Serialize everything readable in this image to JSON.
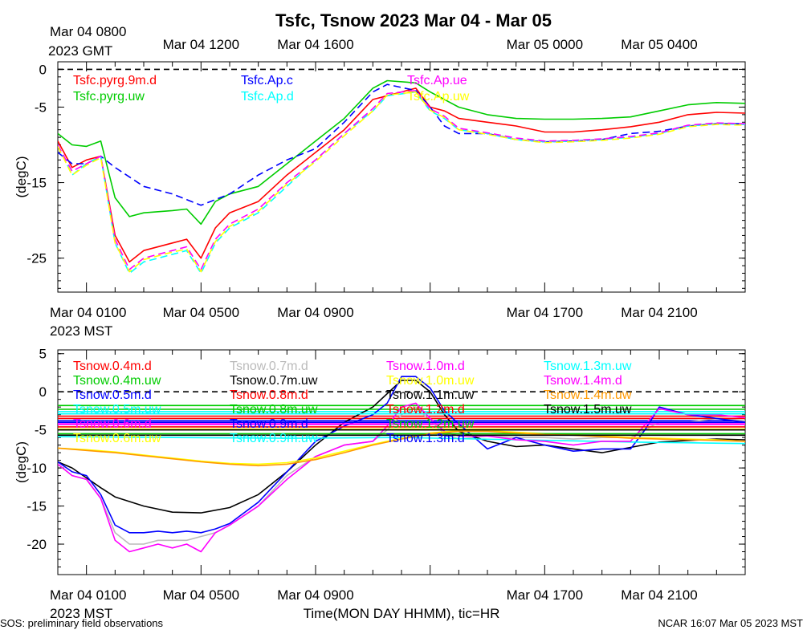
{
  "title": "Tsfc, Tsnow 2023 Mar 04 - Mar 05",
  "footer_left": "SOS: preliminary field observations",
  "footer_right": "NCAR 16:07 Mar 05 2023 MST",
  "chart_data": [
    {
      "type": "line",
      "name": "Tsfc",
      "ylabel": "(degC)",
      "ylim": [
        -29.5,
        1
      ],
      "yticks": [
        0,
        -5,
        -15,
        -25
      ],
      "reference_line": 0,
      "x_unit": "hours after Mar 04 0000 MST",
      "xlim": [
        0,
        24
      ],
      "top_axis_header": [
        "Mar 04 0800",
        "2023 GMT"
      ],
      "top_tick_labels": [
        {
          "x": 5,
          "label": "Mar 04 1200"
        },
        {
          "x": 9,
          "label": "Mar 04 1600"
        },
        {
          "x": 17,
          "label": "Mar 05 0000"
        },
        {
          "x": 21,
          "label": "Mar 05 0400"
        }
      ],
      "bottom_axis_header": [
        "Mar 04 0100",
        "2023 MST"
      ],
      "bottom_tick_labels": [
        {
          "x": 5,
          "label": "Mar 04 0500"
        },
        {
          "x": 9,
          "label": "Mar 04 0900"
        },
        {
          "x": 17,
          "label": "Mar 04 1700"
        },
        {
          "x": 21,
          "label": "Mar 04 2100"
        }
      ],
      "series": [
        {
          "name": "Tsfc.pyrg.9m.d",
          "color": "#ff0000",
          "dashed": false,
          "x": [
            0,
            0.5,
            1,
            1.5,
            2,
            2.5,
            3,
            4,
            4.5,
            5,
            5.5,
            6,
            7,
            8,
            9,
            10,
            11,
            11.5,
            12.5,
            13,
            13.5,
            14,
            15,
            16,
            17,
            18,
            19,
            20,
            21,
            22,
            23,
            24
          ],
          "y": [
            -9.5,
            -13,
            -12,
            -11.5,
            -22,
            -25.5,
            -24,
            -23,
            -22.5,
            -25,
            -21,
            -19,
            -17.5,
            -14,
            -11,
            -8,
            -4,
            -3.5,
            -2.5,
            -5,
            -5.5,
            -6.5,
            -7,
            -7.5,
            -8.3,
            -8.3,
            -8,
            -7.6,
            -7,
            -6,
            -5.7,
            -5.8
          ]
        },
        {
          "name": "Tsfc.pyrg.uw",
          "color": "#00cc00",
          "dashed": false,
          "x": [
            0,
            0.5,
            1,
            1.5,
            2,
            2.5,
            3,
            4,
            4.5,
            5,
            5.5,
            6,
            7,
            8,
            9,
            10,
            11,
            11.5,
            12.5,
            13,
            13.5,
            14,
            15,
            16,
            17,
            18,
            19,
            20,
            21,
            22,
            23,
            24
          ],
          "y": [
            -8.5,
            -10,
            -10.2,
            -9.5,
            -17,
            -19.5,
            -19,
            -18.7,
            -18.5,
            -20.5,
            -17.5,
            -16.5,
            -15.5,
            -12.5,
            -9.5,
            -6.5,
            -2.5,
            -1.5,
            -1.8,
            -3,
            -4,
            -5,
            -6,
            -6.5,
            -6.6,
            -6.6,
            -6.5,
            -6.3,
            -5.5,
            -4.7,
            -4.4,
            -4.5
          ]
        },
        {
          "name": "Tsfc.Ap.c",
          "color": "#0000ff",
          "dashed": true,
          "x": [
            0,
            0.5,
            1,
            1.5,
            2,
            3,
            4,
            5,
            6,
            7,
            8,
            9,
            10,
            11,
            11.5,
            12.5,
            13,
            13.5,
            14,
            15,
            16,
            17,
            18,
            19,
            20,
            21,
            22,
            23,
            24
          ],
          "y": [
            -11,
            -12.5,
            -12.5,
            -11.5,
            -13,
            -15.5,
            -16.5,
            -18,
            -16.5,
            -14,
            -12,
            -10.5,
            -7,
            -3,
            -2,
            -2.8,
            -5,
            -7.5,
            -8.5,
            -8.5,
            -9.3,
            -9.6,
            -9.5,
            -9.3,
            -8.5,
            -8.2,
            -7.5,
            -7.2,
            -7.2
          ]
        },
        {
          "name": "Tsfc.Ap.d",
          "color": "#00ffff",
          "dashed": true,
          "x": [
            0,
            0.5,
            1,
            1.5,
            2,
            2.5,
            3,
            4,
            4.5,
            5,
            5.5,
            6,
            7,
            8,
            9,
            10,
            11,
            11.5,
            12.5,
            13,
            13.5,
            14,
            15,
            16,
            17,
            18,
            19,
            20,
            21,
            22,
            23,
            24
          ],
          "y": [
            -10,
            -14,
            -12.5,
            -11.5,
            -23,
            -27,
            -25.5,
            -24.5,
            -24,
            -27,
            -23,
            -21,
            -19,
            -15.5,
            -12,
            -8.5,
            -5.5,
            -3.5,
            -3,
            -5.5,
            -6.5,
            -8,
            -8.5,
            -9.3,
            -9.6,
            -9.5,
            -9.3,
            -9,
            -8.5,
            -7.5,
            -7.2,
            -7.3
          ]
        },
        {
          "name": "Tsfc.Ap.ue",
          "color": "#ff00ff",
          "dashed": true,
          "x": [
            0,
            0.5,
            1,
            1.5,
            2,
            2.5,
            3,
            4,
            4.5,
            5,
            5.5,
            6,
            7,
            8,
            9,
            10,
            11,
            11.5,
            12.5,
            13,
            13.5,
            14,
            15,
            16,
            17,
            18,
            19,
            20,
            21,
            22,
            23,
            24
          ],
          "y": [
            -10,
            -13.5,
            -12.5,
            -11.5,
            -22.5,
            -26.5,
            -25,
            -24,
            -23.5,
            -26.5,
            -22.5,
            -20.5,
            -18.5,
            -15,
            -12,
            -8.5,
            -5.2,
            -3.2,
            -2.8,
            -5.2,
            -6.2,
            -7.8,
            -8.4,
            -9.1,
            -9.5,
            -9.4,
            -9.2,
            -8.9,
            -8.4,
            -7.4,
            -7.1,
            -7.2
          ]
        },
        {
          "name": "Tsfc.Ap.uw",
          "color": "#ffff00",
          "dashed": true,
          "x": [
            0,
            0.5,
            1,
            1.5,
            2,
            2.5,
            3,
            4,
            4.5,
            5,
            5.5,
            6,
            7,
            8,
            9,
            10,
            11,
            11.5,
            12.5,
            13,
            13.5,
            14,
            15,
            16,
            17,
            18,
            19,
            20,
            21,
            22,
            23,
            24
          ],
          "y": [
            -10.2,
            -14,
            -12.7,
            -11.7,
            -23,
            -26.8,
            -25.2,
            -24.2,
            -23.8,
            -26.8,
            -22.8,
            -20.8,
            -18.8,
            -15.2,
            -12.2,
            -8.8,
            -5.5,
            -3.4,
            -3,
            -5.4,
            -6.4,
            -8,
            -8.6,
            -9.3,
            -9.7,
            -9.6,
            -9.4,
            -9.1,
            -8.6,
            -7.6,
            -7.3,
            -7.4
          ]
        }
      ]
    },
    {
      "type": "line",
      "name": "Tsnow",
      "ylabel": "(degC)",
      "ylim": [
        -24,
        5.5
      ],
      "yticks": [
        5,
        0,
        -5,
        -10,
        -15,
        -20
      ],
      "reference_line": 0,
      "x_unit": "hours after Mar 04 0000 MST",
      "xlim": [
        0,
        24
      ],
      "bottom_axis_header": [
        "Mar 04 0100",
        "2023 MST"
      ],
      "bottom_tick_labels": [
        {
          "x": 5,
          "label": "Mar 04 0500"
        },
        {
          "x": 9,
          "label": "Mar 04 0900"
        },
        {
          "x": 17,
          "label": "Mar 04 1700"
        },
        {
          "x": 21,
          "label": "Mar 04 2100"
        }
      ],
      "xlabel": "Time(MON DAY HHMM), tic=HR",
      "series": [
        {
          "name": "Tsnow.0.4m.d",
          "color": "#ff0000",
          "y_const": -3.2
        },
        {
          "name": "Tsnow.0.4m.uw",
          "color": "#00cc00",
          "y_const": -1.8
        },
        {
          "name": "Tsnow.0.5m.d",
          "color": "#0000ff",
          "y_const": -3.8
        },
        {
          "name": "Tsnow.0.5m.uw",
          "color": "#00ffff",
          "y_const": -2.6
        },
        {
          "name": "Tsnow.0.6m.d",
          "color": "#ff00ff",
          "y_const": -4.3
        },
        {
          "name": "Tsnow.0.6m.uw",
          "color": "#ffff00",
          "y_const": -4.9
        },
        {
          "name": "Tsnow.0.7m.d",
          "color": "#bbbbbb",
          "x": [
            0,
            0.5,
            1,
            1.5,
            2,
            2.5,
            3,
            3.5,
            4,
            4.5,
            5,
            5.5,
            6,
            7,
            8,
            9,
            10,
            11,
            11.5,
            12,
            12.5,
            13,
            13.5,
            14,
            15,
            16,
            17,
            18,
            19,
            20,
            21,
            22,
            23,
            24
          ],
          "y": [
            -9.5,
            -11,
            -11.5,
            -14,
            -18.5,
            -20,
            -20,
            -19.5,
            -19.5,
            -19.5,
            -19,
            -18.5,
            -17.5,
            -15,
            -11,
            -8.5,
            -7,
            -6.5,
            -5,
            -3,
            -2,
            -3.8,
            -5.5,
            -6.2,
            -5.8,
            -6,
            -6,
            -6.2,
            -6,
            -6,
            -4,
            -4,
            -3.5,
            -3.8
          ]
        },
        {
          "name": "Tsnow.0.7m.uw",
          "color": "#000000",
          "x": [
            0,
            0.5,
            1,
            1.5,
            2,
            3,
            4,
            5,
            6,
            7,
            8,
            9,
            10,
            11,
            12,
            12.5,
            13,
            13.5,
            14,
            15,
            16,
            17,
            18,
            19,
            20,
            21,
            22,
            23,
            24
          ],
          "y": [
            -9.2,
            -10,
            -11.3,
            -12.6,
            -13.8,
            -15,
            -15.8,
            -15.9,
            -15.2,
            -13.5,
            -10.5,
            -7,
            -4,
            -2,
            1.5,
            1.5,
            0,
            -3,
            -5.2,
            -6.5,
            -7.2,
            -7,
            -7.5,
            -8,
            -7.3,
            -6.6,
            -6.4,
            -6.2,
            -6.3
          ]
        },
        {
          "name": "Tsnow.0.8m.d",
          "color": "#ff0000",
          "y_const": -3.5
        },
        {
          "name": "Tsnow.0.8m.uw",
          "color": "#00cc00",
          "y_const": -2.3
        },
        {
          "name": "Tsnow.0.9m.d",
          "color": "#0000ff",
          "x": [
            0,
            0.5,
            1,
            1.5,
            2,
            2.5,
            3,
            3.5,
            4,
            4.5,
            5,
            5.5,
            6,
            7,
            8,
            9,
            10,
            11,
            11.5,
            12,
            12.5,
            13,
            13.5,
            14,
            15,
            16,
            17,
            18,
            19,
            20,
            20.5,
            21,
            22,
            23,
            24
          ],
          "y": [
            -9.2,
            -10.5,
            -11,
            -13.5,
            -17.5,
            -18.5,
            -18.5,
            -18.3,
            -18.5,
            -18.3,
            -18.5,
            -18,
            -17.3,
            -14.5,
            -10.5,
            -6.5,
            -4.5,
            -3,
            -1.5,
            2,
            2,
            0.5,
            -2.5,
            -4.2,
            -7.5,
            -6,
            -7,
            -7.8,
            -7.5,
            -7.5,
            -5,
            -2,
            -3,
            -3.5,
            -4
          ]
        },
        {
          "name": "Tsnow.0.9m.uw",
          "color": "#00ffff",
          "x": [
            0,
            4,
            8,
            12,
            16,
            20,
            24
          ],
          "y": [
            -5.9,
            -6.0,
            -6.1,
            -6.0,
            -6.3,
            -6.6,
            -6.8
          ]
        },
        {
          "name": "Tsnow.1.0m.d",
          "color": "#ff00ff",
          "x": [
            0,
            0.5,
            1,
            1.5,
            2,
            2.5,
            3,
            3.5,
            4,
            4.5,
            5,
            5.5,
            6,
            7,
            8,
            9,
            10,
            11,
            11.5,
            12,
            12.5,
            13,
            13.5,
            14,
            15,
            16,
            17,
            18,
            19,
            20,
            21,
            22,
            23,
            24
          ],
          "y": [
            -9.5,
            -11,
            -11.5,
            -14,
            -19.5,
            -21,
            -20.5,
            -20,
            -20.5,
            -20,
            -21,
            -18.5,
            -17.5,
            -15,
            -11.5,
            -8.5,
            -7,
            -6.5,
            -4.5,
            -2,
            -1.5,
            -3.5,
            -5.2,
            -5.8,
            -5.8,
            -6.3,
            -6.5,
            -7,
            -6.5,
            -6.5,
            -2.2,
            -3,
            -3,
            -3.4
          ]
        },
        {
          "name": "Tsnow.1.0m.uw",
          "color": "#ffff00",
          "x": [
            0,
            1,
            2,
            3,
            4,
            5,
            6,
            7,
            8,
            9,
            10,
            11,
            12,
            13,
            14,
            15,
            16,
            17,
            18,
            19,
            20,
            21,
            22,
            23,
            24
          ],
          "y": [
            -7.4,
            -7.6,
            -7.9,
            -8.3,
            -8.7,
            -9.1,
            -9.4,
            -9.5,
            -9.3,
            -8.7,
            -7.8,
            -6.9,
            -6.1,
            -5.4,
            -5.1,
            -5.1,
            -5.3,
            -5.5,
            -5.6,
            -5.8,
            -6,
            -6.1,
            -6.2,
            -6.3,
            -6.5
          ]
        },
        {
          "name": "Tsnow.1.1m.uw",
          "color": "#000000",
          "y_const": -5.0
        },
        {
          "name": "Tsnow.1.2m.d",
          "color": "#ff0000",
          "y_const": -4.6
        },
        {
          "name": "Tsnow.1.2m.uw",
          "color": "#00cc00",
          "y_const": -5.5
        },
        {
          "name": "Tsnow.1.3m.d",
          "color": "#0000ff",
          "y_const": -4.0
        },
        {
          "name": "Tsnow.1.3m.uw",
          "color": "#00ffff",
          "y_const": -2.9
        },
        {
          "name": "Tsnow.1.4m.d",
          "color": "#ff00ff",
          "y_const": -4.2
        },
        {
          "name": "Tsnow.1.4m.uw",
          "color": "#ff9900",
          "x": [
            0,
            1,
            2,
            3,
            4,
            5,
            6,
            7,
            8,
            9,
            10,
            11,
            12,
            13,
            14,
            15,
            16,
            17,
            18,
            19,
            20,
            21,
            22,
            23,
            24
          ],
          "y": [
            -7.4,
            -7.7,
            -8,
            -8.4,
            -8.8,
            -9.2,
            -9.5,
            -9.7,
            -9.5,
            -8.9,
            -8,
            -7,
            -6.2,
            -5.5,
            -5.2,
            -5.2,
            -5.4,
            -5.6,
            -5.7,
            -5.9,
            -6.1,
            -6.2,
            -6.3,
            -6.4,
            -6.5
          ]
        },
        {
          "name": "Tsnow.1.5m.uw",
          "color": "#000000",
          "y_const": -5.7
        }
      ]
    }
  ]
}
